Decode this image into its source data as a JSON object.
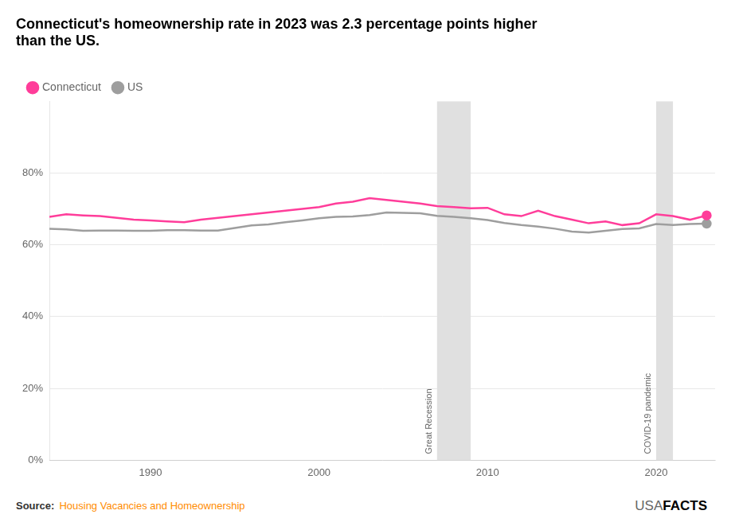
{
  "chart_data": {
    "type": "line",
    "title": [
      "Connecticut's homeownership rate in 2023 was 2.3 percentage points higher",
      "than the US."
    ],
    "x": [
      1984,
      1985,
      1986,
      1987,
      1988,
      1989,
      1990,
      1991,
      1992,
      1993,
      1994,
      1995,
      1996,
      1997,
      1998,
      1999,
      2000,
      2001,
      2002,
      2003,
      2004,
      2005,
      2006,
      2007,
      2008,
      2009,
      2010,
      2011,
      2012,
      2013,
      2014,
      2015,
      2016,
      2017,
      2018,
      2019,
      2020,
      2021,
      2022,
      2023
    ],
    "series": [
      {
        "name": "Connecticut",
        "color": "#FF3D9A",
        "values": [
          67.8,
          68.5,
          68.2,
          68.0,
          67.5,
          67.0,
          66.8,
          66.5,
          66.3,
          67.0,
          67.5,
          68.0,
          68.5,
          69.0,
          69.5,
          70.0,
          70.5,
          71.5,
          72.0,
          73.0,
          72.5,
          72.0,
          71.5,
          70.8,
          70.5,
          70.2,
          70.3,
          68.5,
          68.0,
          69.5,
          68.0,
          67.0,
          66.0,
          66.5,
          65.5,
          66.0,
          68.5,
          68.0,
          67.0,
          68.2
        ]
      },
      {
        "name": "US",
        "color": "#9E9E9E",
        "values": [
          64.5,
          64.3,
          63.9,
          64.0,
          64.0,
          63.9,
          63.9,
          64.1,
          64.1,
          64.0,
          64.0,
          64.7,
          65.4,
          65.7,
          66.3,
          66.8,
          67.4,
          67.8,
          67.9,
          68.3,
          69.0,
          68.9,
          68.8,
          68.1,
          67.8,
          67.4,
          66.9,
          66.1,
          65.5,
          65.1,
          64.5,
          63.7,
          63.4,
          63.9,
          64.4,
          64.6,
          65.8,
          65.5,
          65.8,
          65.9
        ]
      }
    ],
    "xlim": [
      1984,
      2023.5
    ],
    "xticks": [
      1990,
      2000,
      2010,
      2020
    ],
    "ylim": [
      0,
      100
    ],
    "yticks": [
      {
        "value": 0,
        "label": "0%"
      },
      {
        "value": 20,
        "label": "20%"
      },
      {
        "value": 40,
        "label": "40%"
      },
      {
        "value": 60,
        "label": "60%"
      },
      {
        "value": 80,
        "label": "80%"
      }
    ],
    "grid": "y",
    "legend": "upper left",
    "annotations": [
      {
        "text": "Great Recession",
        "x_start": 2007,
        "x_end": 2009,
        "color": "#E0E0E0"
      },
      {
        "text": "COVID-19 pandemic",
        "x_start": 2020,
        "x_end": 2021,
        "color": "#E0E0E0"
      }
    ],
    "source_label": "Source:",
    "source": "Housing Vacancies and Homeownership",
    "source_color": "#FF8C00",
    "brand": [
      "USA",
      "FACTS"
    ]
  }
}
